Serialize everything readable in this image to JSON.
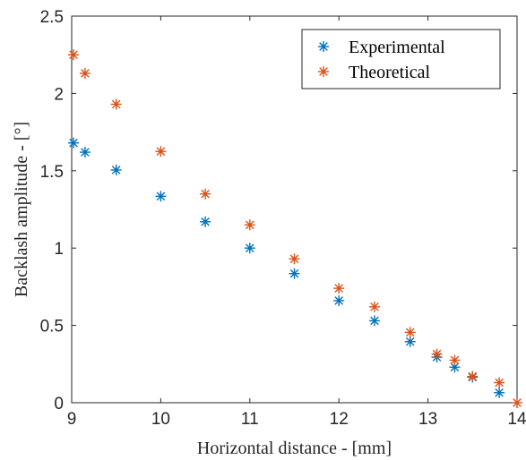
{
  "chart_data": {
    "type": "scatter",
    "xlabel": "Horizontal distance - [mm]",
    "ylabel": "Backlash amplitude - [°]",
    "xlim": [
      9,
      14
    ],
    "ylim": [
      0,
      2.5
    ],
    "x_ticks": [
      "9",
      "10",
      "11",
      "12",
      "13",
      "14"
    ],
    "y_ticks": [
      "0",
      "0.5",
      "1",
      "1.5",
      "2",
      "2.5"
    ],
    "grid": false,
    "legend_position": "top-right",
    "marker": "asterisk",
    "series": [
      {
        "name": "Experimental",
        "color": "#0072BD",
        "points": [
          [
            9.02,
            1.68
          ],
          [
            9.15,
            1.62
          ],
          [
            9.5,
            1.505
          ],
          [
            10.0,
            1.335
          ],
          [
            10.5,
            1.17
          ],
          [
            11.0,
            1.0
          ],
          [
            11.5,
            0.835
          ],
          [
            12.0,
            0.66
          ],
          [
            12.4,
            0.53
          ],
          [
            12.8,
            0.395
          ],
          [
            13.1,
            0.295
          ],
          [
            13.3,
            0.23
          ],
          [
            13.5,
            0.165
          ],
          [
            13.8,
            0.065
          ]
        ]
      },
      {
        "name": "Theoretical",
        "color": "#D95319",
        "points": [
          [
            9.02,
            2.25
          ],
          [
            9.15,
            2.13
          ],
          [
            9.5,
            1.93
          ],
          [
            10.0,
            1.625
          ],
          [
            10.5,
            1.35
          ],
          [
            11.0,
            1.15
          ],
          [
            11.5,
            0.93
          ],
          [
            12.0,
            0.74
          ],
          [
            12.4,
            0.62
          ],
          [
            12.8,
            0.455
          ],
          [
            13.1,
            0.315
          ],
          [
            13.3,
            0.275
          ],
          [
            13.5,
            0.17
          ],
          [
            13.8,
            0.13
          ],
          [
            14.0,
            0.0
          ]
        ]
      }
    ]
  }
}
